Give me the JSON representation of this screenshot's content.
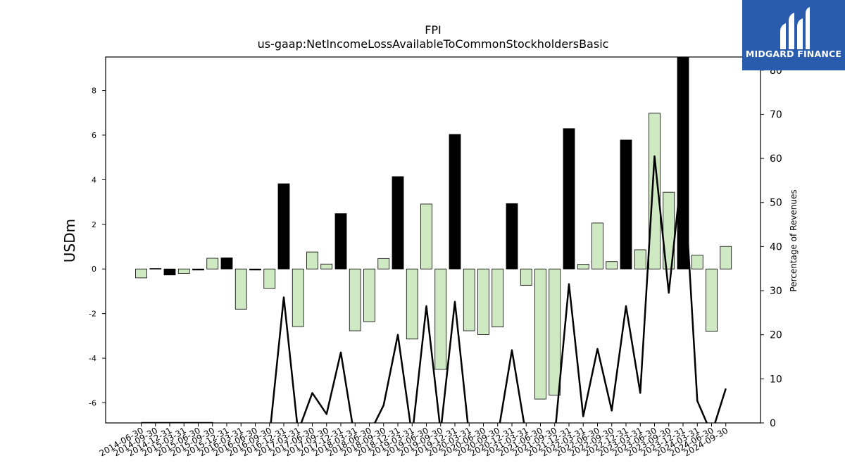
{
  "chart_data": {
    "type": "bar+line",
    "title": "FPI",
    "subtitle": "us-gaap:NetIncomeLossAvailableToCommonStockholdersBasic",
    "ylabel": "USDm",
    "y2label": "Percentage of Revenues",
    "ylim": [
      -6.9,
      9.5
    ],
    "y2lim": [
      0,
      83
    ],
    "yticks": [
      -6,
      -4,
      -2,
      0,
      2,
      4,
      6,
      8
    ],
    "y2ticks": [
      0,
      10,
      20,
      30,
      40,
      50,
      60,
      70,
      80
    ],
    "categories": [
      "2014-06-30",
      "2014-09-30",
      "2014-12-31",
      "2015-03-31",
      "2015-06-30",
      "2015-09-30",
      "2015-12-31",
      "2016-03-31",
      "2016-06-30",
      "2016-09-30",
      "2016-12-31",
      "2017-03-31",
      "2017-06-30",
      "2017-09-30",
      "2017-12-31",
      "2018-03-31",
      "2018-06-30",
      "2018-09-30",
      "2018-12-31",
      "2019-03-31",
      "2019-06-30",
      "2019-09-30",
      "2019-12-31",
      "2020-03-31",
      "2020-06-30",
      "2020-09-30",
      "2020-12-31",
      "2021-03-31",
      "2021-06-30",
      "2021-09-30",
      "2021-12-31",
      "2022-03-31",
      "2022-06-30",
      "2022-09-30",
      "2022-12-31",
      "2023-03-31",
      "2023-06-30",
      "2023-09-30",
      "2023-12-31",
      "2024-03-31",
      "2024-06-30",
      "2024-09-30"
    ],
    "bar_values": [
      -0.4,
      0.02,
      -0.27,
      -0.2,
      -0.05,
      0.48,
      0.5,
      -1.8,
      -0.05,
      -0.87,
      3.82,
      -2.58,
      0.76,
      0.22,
      2.48,
      -2.77,
      -2.36,
      0.47,
      4.14,
      -3.14,
      2.91,
      -4.5,
      6.03,
      -2.77,
      -2.94,
      -2.6,
      2.93,
      -0.73,
      -5.83,
      -5.65,
      6.29,
      0.21,
      2.06,
      0.33,
      5.78,
      0.86,
      6.98,
      3.44,
      9.6,
      0.62,
      -2.8,
      1.01
    ],
    "bar_highlight": [
      false,
      false,
      true,
      false,
      true,
      false,
      true,
      false,
      true,
      false,
      true,
      false,
      false,
      false,
      true,
      false,
      false,
      false,
      true,
      false,
      false,
      false,
      true,
      false,
      false,
      false,
      true,
      false,
      false,
      false,
      true,
      false,
      false,
      false,
      true,
      false,
      false,
      false,
      true,
      false,
      false,
      false
    ],
    "line_values": [
      0,
      0,
      0,
      0,
      0,
      0,
      -3,
      -3,
      -3,
      -3,
      28.5,
      -2,
      6.8,
      2,
      16,
      -4,
      -2.5,
      4,
      20,
      -3,
      26.5,
      -2,
      27.5,
      -3,
      -3,
      -3,
      16.5,
      -3,
      -3,
      -3,
      31.5,
      1.5,
      16.8,
      2.8,
      26.5,
      6.8,
      60.5,
      29.5,
      60,
      5,
      -2.5,
      7.8
    ],
    "colors": {
      "bar_positive_fill": "#cfe9c3",
      "bar_highlight_fill": "#000000",
      "bar_edge": "#000000",
      "line": "#000000"
    }
  },
  "logo": {
    "text": "MIDGARD FINANCE",
    "background": "#2a5cad"
  }
}
